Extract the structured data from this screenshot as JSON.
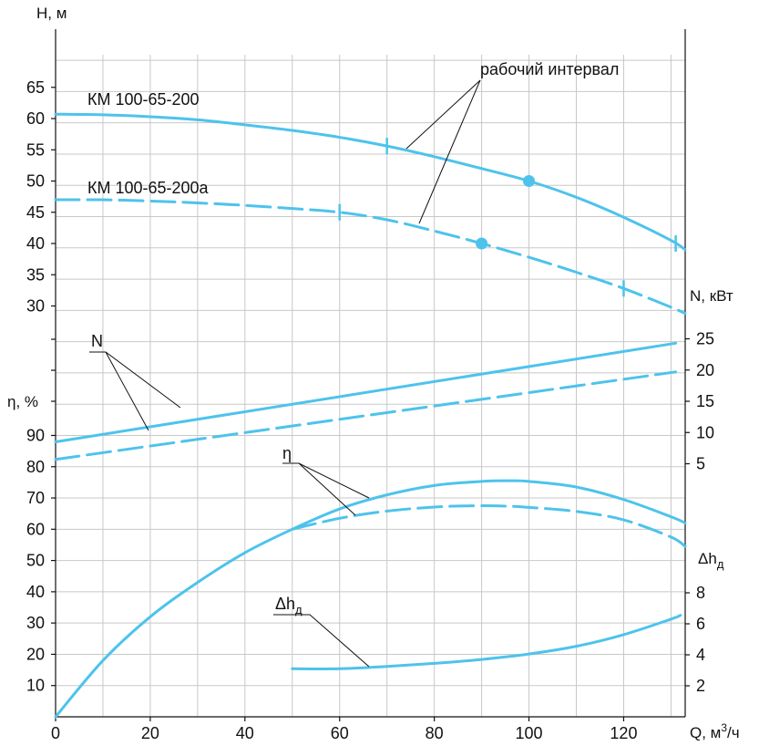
{
  "chart_data": {
    "type": "line",
    "x_axis": {
      "label": "Q, м³/ч",
      "range": [
        0,
        133
      ],
      "ticks": [
        0,
        20,
        40,
        60,
        80,
        100,
        120
      ]
    },
    "y_axes": {
      "H": {
        "label": "H, м",
        "range": [
          30,
          65
        ],
        "ticks": [
          30,
          35,
          40,
          45,
          50,
          55,
          60,
          65
        ]
      },
      "N": {
        "label": "N, кВт",
        "range": [
          5,
          25
        ],
        "ticks": [
          5,
          10,
          15,
          20,
          25
        ]
      },
      "eta": {
        "label": "η, %",
        "range": [
          0,
          90
        ],
        "ticks": [
          10,
          20,
          30,
          40,
          50,
          60,
          70,
          80,
          90
        ]
      },
      "NPSH": {
        "label": "Δhд",
        "range": [
          2,
          8
        ],
        "ticks": [
          2,
          4,
          6,
          8
        ]
      }
    },
    "grid": true,
    "colors": {
      "curve": "#4DC3EC"
    },
    "series": [
      {
        "name": "КМ 100-65-200",
        "axis": "H",
        "style": "solid",
        "x": [
          0,
          10,
          20,
          30,
          40,
          50,
          60,
          70,
          80,
          90,
          100,
          110,
          120,
          130,
          133
        ],
        "y": [
          60.7,
          60.6,
          60.3,
          59.8,
          59.0,
          58.1,
          57.0,
          55.6,
          53.9,
          52.0,
          50.0,
          47.4,
          44.2,
          40.5,
          39.0
        ],
        "range_ticks": [
          70,
          131
        ],
        "marker": [
          100,
          50
        ]
      },
      {
        "name": "КМ 100-65-200а",
        "axis": "H",
        "style": "dashed",
        "x": [
          0,
          10,
          20,
          30,
          40,
          50,
          60,
          70,
          80,
          90,
          100,
          110,
          120,
          130,
          133
        ],
        "y": [
          47.0,
          47.0,
          46.8,
          46.5,
          46.1,
          45.6,
          45.0,
          43.8,
          42.0,
          40.0,
          37.8,
          35.4,
          32.8,
          29.8,
          28.8
        ],
        "range_ticks": [
          60,
          120
        ],
        "marker": [
          90,
          40
        ]
      },
      {
        "name": "N",
        "axis": "N",
        "style": "solid",
        "x": [
          0,
          131
        ],
        "y": [
          8.5,
          24.3
        ]
      },
      {
        "name": "N",
        "axis": "N",
        "style": "dashed",
        "x": [
          0,
          131
        ],
        "y": [
          5.7,
          19.7
        ]
      },
      {
        "name": "η",
        "axis": "eta",
        "style": "solid",
        "x": [
          0,
          10,
          20,
          30,
          40,
          50,
          60,
          70,
          80,
          90,
          96,
          100,
          110,
          120,
          130,
          133
        ],
        "y": [
          0,
          18,
          32,
          43,
          52.5,
          60,
          66.5,
          71,
          74,
          75.3,
          75.5,
          75.3,
          73.5,
          69.5,
          64,
          62
        ]
      },
      {
        "name": "η",
        "axis": "eta",
        "style": "dashed",
        "x": [
          50,
          60,
          70,
          80,
          88,
          95,
          100,
          110,
          120,
          130,
          133
        ],
        "y": [
          60,
          63.5,
          65.8,
          67.1,
          67.5,
          67.4,
          67,
          65.7,
          63,
          57.5,
          54.5
        ]
      },
      {
        "name": "Δhд",
        "axis": "NPSH",
        "style": "solid",
        "x": [
          50,
          60,
          70,
          80,
          90,
          100,
          110,
          120,
          130,
          132
        ],
        "y": [
          3.1,
          3.1,
          3.25,
          3.45,
          3.7,
          4.05,
          4.55,
          5.3,
          6.3,
          6.55
        ]
      }
    ],
    "annotations": {
      "operating_range": "рабочий интервал",
      "pump_main": "КМ 100-65-200",
      "pump_trim": "КМ 100-65-200а",
      "power": "N",
      "efficiency": "η",
      "npsh": "Δhд"
    }
  }
}
